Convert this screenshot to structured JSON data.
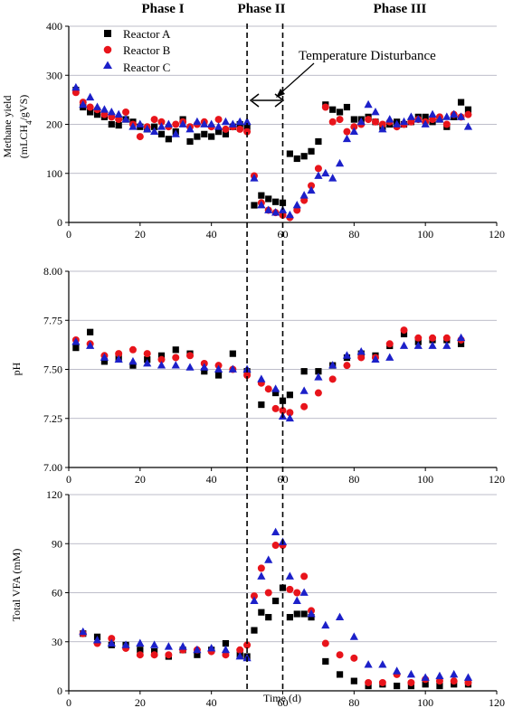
{
  "figure": {
    "phases": [
      "Phase I",
      "Phase II",
      "Phase III"
    ],
    "annotation": "Temperature Disturbance",
    "phase_boundaries": [
      50,
      60
    ],
    "xlabel": "Time (d)",
    "legend": [
      "Reactor A",
      "Reactor B",
      "Reactor C"
    ],
    "colors": {
      "Reactor A": "#000000",
      "Reactor B": "#e8141b",
      "Reactor C": "#1c20c9"
    },
    "markers": {
      "Reactor A": "square",
      "Reactor B": "circle",
      "Reactor C": "triangle"
    }
  },
  "chart_data": [
    {
      "type": "scatter",
      "title": "",
      "xlabel": "",
      "ylabel": "Methane yield",
      "ylabel2_pre": "(mLCH",
      "ylabel2_sub": "4",
      "ylabel2_post": "/gVS)",
      "xlim": [
        0,
        120
      ],
      "ylim": [
        0,
        400
      ],
      "xticks": [
        0,
        20,
        40,
        60,
        80,
        100,
        120
      ],
      "yticks": [
        0,
        100,
        200,
        300,
        400
      ],
      "ytick_labels": [
        "0",
        "100",
        "200",
        "300",
        "400"
      ],
      "grid": "horizontal",
      "legend_position": "top-left",
      "series": [
        {
          "name": "Reactor A",
          "x": [
            2,
            4,
            6,
            8,
            10,
            12,
            14,
            16,
            18,
            20,
            22,
            24,
            26,
            28,
            30,
            32,
            34,
            36,
            38,
            40,
            42,
            44,
            46,
            48,
            50,
            52,
            54,
            56,
            58,
            60,
            62,
            64,
            66,
            68,
            70,
            72,
            74,
            76,
            78,
            80,
            82,
            84,
            86,
            88,
            90,
            92,
            94,
            96,
            98,
            100,
            102,
            104,
            106,
            108,
            110,
            112
          ],
          "y": [
            270,
            235,
            225,
            220,
            215,
            200,
            198,
            210,
            205,
            195,
            190,
            195,
            180,
            170,
            185,
            210,
            165,
            175,
            180,
            175,
            185,
            180,
            195,
            200,
            195,
            35,
            55,
            48,
            42,
            40,
            140,
            130,
            135,
            145,
            165,
            240,
            230,
            225,
            235,
            210,
            210,
            215,
            205,
            195,
            200,
            205,
            200,
            205,
            215,
            215,
            205,
            210,
            195,
            215,
            245,
            230
          ]
        },
        {
          "name": "Reactor B",
          "x": [
            2,
            4,
            6,
            8,
            10,
            12,
            14,
            16,
            18,
            20,
            22,
            24,
            26,
            28,
            30,
            32,
            34,
            36,
            38,
            40,
            42,
            44,
            46,
            48,
            50,
            52,
            54,
            56,
            58,
            60,
            62,
            64,
            66,
            68,
            70,
            72,
            74,
            76,
            78,
            80,
            82,
            84,
            86,
            88,
            90,
            92,
            94,
            96,
            98,
            100,
            102,
            104,
            106,
            108,
            110,
            112
          ],
          "y": [
            265,
            245,
            235,
            230,
            220,
            215,
            210,
            225,
            200,
            175,
            195,
            210,
            205,
            195,
            200,
            205,
            195,
            200,
            205,
            195,
            210,
            190,
            195,
            190,
            185,
            95,
            40,
            25,
            20,
            15,
            10,
            25,
            45,
            75,
            110,
            235,
            205,
            210,
            185,
            195,
            200,
            210,
            205,
            200,
            205,
            195,
            200,
            205,
            210,
            205,
            210,
            215,
            200,
            220,
            215,
            220
          ]
        },
        {
          "name": "Reactor C",
          "x": [
            2,
            4,
            6,
            8,
            10,
            12,
            14,
            16,
            18,
            20,
            22,
            24,
            26,
            28,
            30,
            32,
            34,
            36,
            38,
            40,
            42,
            44,
            46,
            48,
            50,
            52,
            54,
            56,
            58,
            60,
            62,
            64,
            66,
            68,
            70,
            72,
            74,
            76,
            78,
            80,
            82,
            84,
            86,
            88,
            90,
            92,
            94,
            96,
            98,
            100,
            102,
            104,
            106,
            108,
            110,
            112
          ],
          "y": [
            275,
            240,
            255,
            235,
            230,
            225,
            220,
            210,
            195,
            200,
            190,
            185,
            195,
            200,
            180,
            200,
            190,
            205,
            200,
            200,
            195,
            205,
            200,
            205,
            205,
            90,
            35,
            25,
            20,
            25,
            15,
            35,
            55,
            65,
            95,
            100,
            90,
            120,
            170,
            185,
            205,
            240,
            225,
            190,
            210,
            200,
            205,
            215,
            210,
            200,
            220,
            210,
            215,
            220,
            215,
            195
          ]
        }
      ]
    },
    {
      "type": "scatter",
      "title": "",
      "xlabel": "",
      "ylabel": "pH",
      "xlim": [
        0,
        120
      ],
      "ylim": [
        7.0,
        8.0
      ],
      "xticks": [
        0,
        20,
        40,
        60,
        80,
        100,
        120
      ],
      "yticks": [
        7.0,
        7.25,
        7.5,
        7.75,
        8.0
      ],
      "ytick_labels": [
        "7.00",
        "7.25",
        "7.50",
        "7.75",
        "8.00"
      ],
      "grid": "horizontal",
      "series": [
        {
          "name": "Reactor A",
          "x": [
            2,
            6,
            10,
            14,
            18,
            22,
            26,
            30,
            34,
            38,
            42,
            46,
            50,
            54,
            58,
            60,
            62,
            66,
            70,
            74,
            78,
            82,
            86,
            90,
            94,
            98,
            102,
            106,
            110
          ],
          "y": [
            7.61,
            7.69,
            7.54,
            7.56,
            7.52,
            7.55,
            7.57,
            7.6,
            7.58,
            7.49,
            7.47,
            7.58,
            7.49,
            7.32,
            7.38,
            7.34,
            7.37,
            7.49,
            7.49,
            7.52,
            7.56,
            7.58,
            7.57,
            7.62,
            7.68,
            7.64,
            7.65,
            7.65,
            7.63
          ]
        },
        {
          "name": "Reactor B",
          "x": [
            2,
            6,
            10,
            14,
            18,
            22,
            26,
            30,
            34,
            38,
            42,
            46,
            50,
            54,
            56,
            58,
            60,
            62,
            66,
            70,
            74,
            78,
            82,
            86,
            90,
            94,
            98,
            102,
            106,
            110
          ],
          "y": [
            7.65,
            7.63,
            7.57,
            7.58,
            7.6,
            7.58,
            7.55,
            7.56,
            7.57,
            7.53,
            7.52,
            7.5,
            7.47,
            7.43,
            7.4,
            7.3,
            7.29,
            7.28,
            7.31,
            7.38,
            7.45,
            7.52,
            7.56,
            7.56,
            7.63,
            7.7,
            7.66,
            7.66,
            7.66,
            7.65
          ]
        },
        {
          "name": "Reactor C",
          "x": [
            2,
            6,
            10,
            14,
            18,
            22,
            26,
            30,
            34,
            38,
            42,
            46,
            50,
            54,
            58,
            60,
            62,
            66,
            70,
            74,
            78,
            82,
            86,
            90,
            94,
            98,
            102,
            106,
            110
          ],
          "y": [
            7.64,
            7.62,
            7.56,
            7.55,
            7.54,
            7.53,
            7.52,
            7.52,
            7.51,
            7.51,
            7.5,
            7.5,
            7.5,
            7.45,
            7.4,
            7.26,
            7.25,
            7.39,
            7.46,
            7.52,
            7.57,
            7.59,
            7.55,
            7.56,
            7.62,
            7.62,
            7.62,
            7.62,
            7.66
          ]
        }
      ]
    },
    {
      "type": "scatter",
      "title": "",
      "xlabel": "Time (d)",
      "ylabel": "Total VFA (mM)",
      "xlim": [
        0,
        120
      ],
      "ylim": [
        0,
        120
      ],
      "xticks": [
        0,
        20,
        40,
        60,
        80,
        100,
        120
      ],
      "yticks": [
        0,
        30,
        60,
        90,
        120
      ],
      "ytick_labels": [
        "0",
        "30",
        "60",
        "90",
        "120"
      ],
      "grid": "horizontal",
      "series": [
        {
          "name": "Reactor A",
          "x": [
            4,
            8,
            12,
            16,
            20,
            24,
            28,
            32,
            36,
            40,
            44,
            48,
            50,
            52,
            54,
            56,
            58,
            60,
            62,
            64,
            66,
            68,
            72,
            76,
            80,
            84,
            88,
            92,
            96,
            100,
            104,
            108,
            112
          ],
          "y": [
            35,
            33,
            28,
            28,
            25,
            24,
            21,
            25,
            22,
            25,
            29,
            22,
            21,
            37,
            48,
            45,
            55,
            63,
            45,
            47,
            47,
            45,
            18,
            10,
            6,
            3,
            4,
            3,
            3,
            4,
            3,
            4,
            4
          ]
        },
        {
          "name": "Reactor B",
          "x": [
            4,
            8,
            12,
            16,
            20,
            24,
            28,
            32,
            36,
            40,
            44,
            48,
            50,
            52,
            54,
            56,
            58,
            60,
            62,
            64,
            66,
            68,
            72,
            76,
            80,
            84,
            88,
            92,
            96,
            100,
            104,
            108,
            112
          ],
          "y": [
            35,
            29,
            32,
            26,
            22,
            22,
            22,
            25,
            25,
            24,
            22,
            25,
            28,
            58,
            75,
            60,
            89,
            89,
            62,
            60,
            70,
            49,
            29,
            22,
            20,
            5,
            5,
            10,
            5,
            7,
            6,
            6,
            5
          ]
        },
        {
          "name": "Reactor C",
          "x": [
            4,
            8,
            12,
            16,
            20,
            24,
            28,
            32,
            36,
            40,
            44,
            48,
            50,
            52,
            54,
            56,
            58,
            60,
            62,
            64,
            66,
            68,
            72,
            76,
            80,
            84,
            88,
            92,
            96,
            100,
            104,
            108,
            112
          ],
          "y": [
            36,
            31,
            29,
            28,
            29,
            28,
            27,
            27,
            25,
            26,
            25,
            21,
            20,
            55,
            70,
            80,
            97,
            91,
            70,
            55,
            60,
            47,
            40,
            45,
            33,
            16,
            16,
            12,
            10,
            8,
            9,
            10,
            8
          ]
        }
      ]
    }
  ]
}
